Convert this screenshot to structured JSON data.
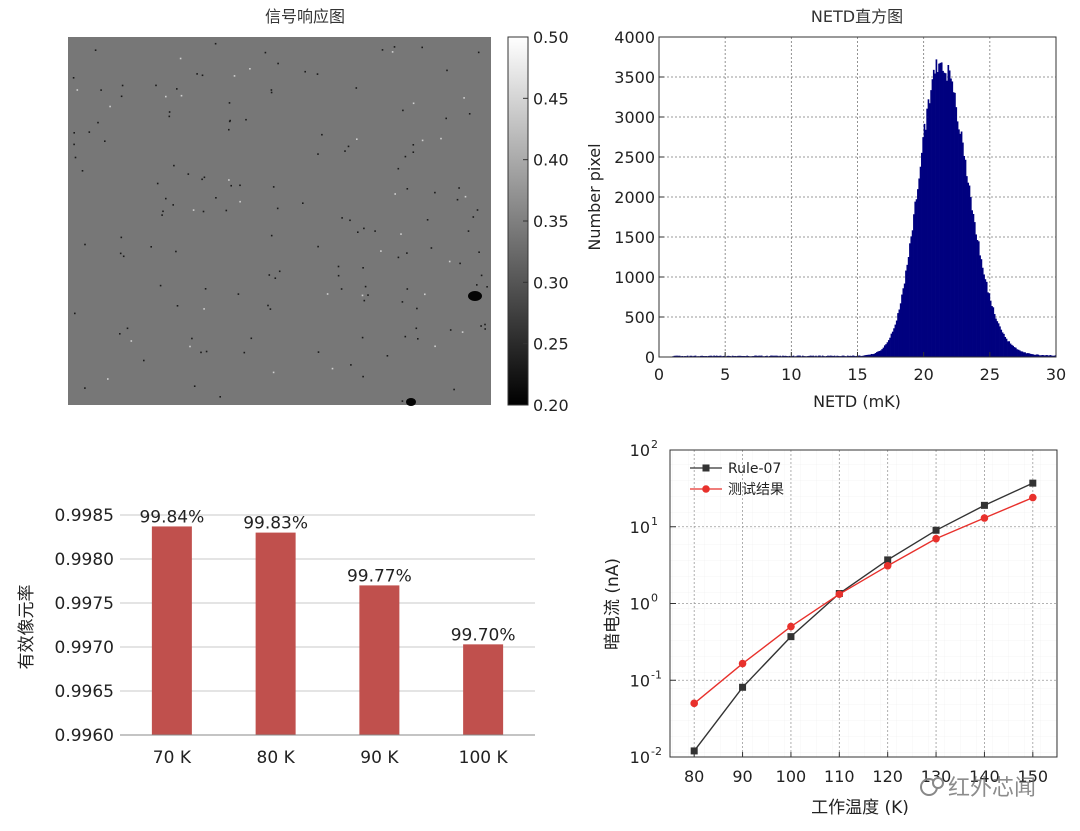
{
  "chart_data": [
    {
      "type": "heatmap",
      "title": "信号响应图",
      "colorbar": {
        "min": 0.2,
        "max": 0.5,
        "ticks": [
          "0.50",
          "0.45",
          "0.40",
          "0.35",
          "0.30",
          "0.25",
          "0.20"
        ]
      },
      "colormap": [
        "#000000",
        "#ffffff"
      ],
      "field_value": 0.34
    },
    {
      "type": "bar",
      "title": "NETD直方图",
      "xlabel": "NETD (mK)",
      "ylabel": "Number pixel",
      "xlim": [
        0,
        30
      ],
      "ylim": [
        0,
        4000
      ],
      "xticks": [
        "0",
        "5",
        "10",
        "15",
        "20",
        "25",
        "30"
      ],
      "yticks": [
        "0",
        "500",
        "1000",
        "1500",
        "2000",
        "2500",
        "3000",
        "3500",
        "4000"
      ],
      "distribution": {
        "center": 21.2,
        "peak": 3650,
        "sigma_left": 1.6,
        "sigma_right": 2.1,
        "min_x": 1,
        "max_x": 30
      },
      "color": "#00007f",
      "grid": true
    },
    {
      "type": "bar",
      "xlabel": "",
      "ylabel": "有效像元率",
      "categories": [
        "70 K",
        "80 K",
        "90 K",
        "100 K"
      ],
      "values": [
        0.99837,
        0.9983,
        0.9977,
        0.99703
      ],
      "labels": [
        "99.84%",
        "99.83%",
        "99.77%",
        "99.70%"
      ],
      "ylim": [
        0.996,
        0.9985
      ],
      "yticks": [
        "0.9960",
        "0.9965",
        "0.9970",
        "0.9975",
        "0.9980",
        "0.9985"
      ],
      "color": "#c0504d",
      "grid": true
    },
    {
      "type": "line",
      "xlabel": "工作温度 (K)",
      "ylabel": "暗电流 (nA)",
      "yscale": "log",
      "x": [
        80,
        90,
        100,
        110,
        120,
        130,
        140,
        150
      ],
      "xticks": [
        "80",
        "90",
        "100",
        "110",
        "120",
        "130",
        "140",
        "150"
      ],
      "ylim": [
        0.01,
        100
      ],
      "yticks": [
        {
          "base": "10",
          "exp": "-2"
        },
        {
          "base": "10",
          "exp": "-1"
        },
        {
          "base": "10",
          "exp": "0"
        },
        {
          "base": "10",
          "exp": "1"
        },
        {
          "base": "10",
          "exp": "2"
        }
      ],
      "series": [
        {
          "name": "Rule-07",
          "values": [
            0.012,
            0.081,
            0.37,
            1.35,
            3.7,
            9.0,
            19.0,
            37.0
          ],
          "color": "#333333",
          "marker": "square"
        },
        {
          "name": "测试结果",
          "values": [
            0.05,
            0.165,
            0.5,
            1.32,
            3.1,
            7.0,
            13.0,
            24.0
          ],
          "color": "#e8312c",
          "marker": "circle"
        }
      ],
      "legend": "top-left",
      "grid": true
    }
  ],
  "watermark": {
    "text": "红外芯闻"
  }
}
